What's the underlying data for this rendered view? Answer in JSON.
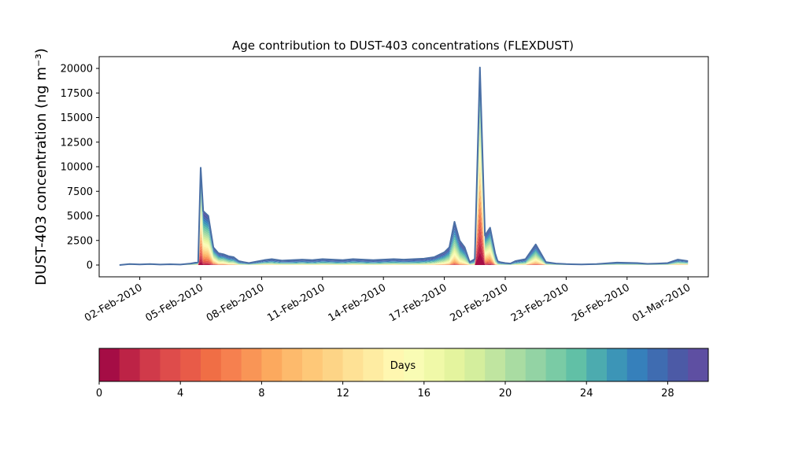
{
  "chart_data": {
    "type": "area",
    "title": "Age contribution to DUST-403 concentrations (FLEXDUST)",
    "ylabel": "DUST-403 concentration (ng m⁻³)",
    "xlabel": "",
    "x_type": "date",
    "x_range": [
      "2010-01-31",
      "2010-03-02"
    ],
    "ylim": [
      -1200,
      21200
    ],
    "y_ticks": [
      0,
      2500,
      5000,
      7500,
      10000,
      12500,
      15000,
      17500,
      20000
    ],
    "x_ticks": [
      "2010-02-02",
      "2010-02-05",
      "2010-02-08",
      "2010-02-11",
      "2010-02-14",
      "2010-02-17",
      "2010-02-20",
      "2010-02-23",
      "2010-02-26",
      "2010-03-01"
    ],
    "x_tick_labels": [
      "02-Feb-2010",
      "05-Feb-2010",
      "08-Feb-2010",
      "11-Feb-2010",
      "14-Feb-2010",
      "17-Feb-2010",
      "20-Feb-2010",
      "23-Feb-2010",
      "26-Feb-2010",
      "01-Mar-2010"
    ],
    "grid": false,
    "series_total": {
      "x": [
        "2010-02-01T00:00",
        "2010-02-01T12:00",
        "2010-02-02T00:00",
        "2010-02-02T12:00",
        "2010-02-03T00:00",
        "2010-02-03T12:00",
        "2010-02-04T00:00",
        "2010-02-04T12:00",
        "2010-02-04T21:00",
        "2010-02-05T00:00",
        "2010-02-05T03:00",
        "2010-02-05T09:00",
        "2010-02-05T15:00",
        "2010-02-05T21:00",
        "2010-02-06T03:00",
        "2010-02-06T09:00",
        "2010-02-06T15:00",
        "2010-02-06T21:00",
        "2010-02-07T03:00",
        "2010-02-07T09:00",
        "2010-02-07T18:00",
        "2010-02-08T03:00",
        "2010-02-08T12:00",
        "2010-02-09T00:00",
        "2010-02-09T12:00",
        "2010-02-10T00:00",
        "2010-02-10T12:00",
        "2010-02-11T00:00",
        "2010-02-11T12:00",
        "2010-02-12T00:00",
        "2010-02-12T12:00",
        "2010-02-13T00:00",
        "2010-02-13T12:00",
        "2010-02-14T00:00",
        "2010-02-14T12:00",
        "2010-02-15T00:00",
        "2010-02-15T12:00",
        "2010-02-16T00:00",
        "2010-02-16T12:00",
        "2010-02-17T00:00",
        "2010-02-17T06:00",
        "2010-02-17T12:00",
        "2010-02-17T18:00",
        "2010-02-18T00:00",
        "2010-02-18T06:00",
        "2010-02-18T12:00",
        "2010-02-18T18:00",
        "2010-02-19T00:00",
        "2010-02-19T06:00",
        "2010-02-19T12:00",
        "2010-02-19T15:00",
        "2010-02-19T18:00",
        "2010-02-20T00:00",
        "2010-02-20T06:00",
        "2010-02-20T12:00",
        "2010-02-21T00:00",
        "2010-02-21T12:00",
        "2010-02-22T00:00",
        "2010-02-22T12:00",
        "2010-02-23T00:00",
        "2010-02-23T06:00",
        "2010-02-23T18:00",
        "2010-02-24T12:00",
        "2010-02-25T12:00",
        "2010-02-26T12:00",
        "2010-02-27T00:00",
        "2010-02-27T12:00",
        "2010-02-28T00:00",
        "2010-02-28T12:00",
        "2010-03-01T00:00"
      ],
      "values": [
        0,
        100,
        60,
        100,
        50,
        80,
        50,
        150,
        300,
        9900,
        5500,
        5000,
        1800,
        1200,
        1100,
        900,
        800,
        400,
        300,
        200,
        350,
        500,
        600,
        450,
        500,
        550,
        500,
        600,
        550,
        500,
        600,
        550,
        500,
        550,
        600,
        550,
        600,
        650,
        800,
        1300,
        1800,
        4400,
        2500,
        1800,
        300,
        600,
        20100,
        3000,
        3800,
        1200,
        400,
        300,
        200,
        150,
        400,
        600,
        2100,
        300,
        150,
        100,
        80,
        60,
        100,
        250,
        200,
        120,
        150,
        200,
        550,
        400
      ]
    },
    "age_fraction_young": [
      0.0,
      0.3,
      0.2,
      0.3,
      0.2,
      0.2,
      0.2,
      0.3,
      0.5,
      0.92,
      0.85,
      0.85,
      0.8,
      0.7,
      0.7,
      0.6,
      0.6,
      0.4,
      0.35,
      0.3,
      0.4,
      0.5,
      0.45,
      0.4,
      0.35,
      0.4,
      0.35,
      0.4,
      0.35,
      0.35,
      0.4,
      0.35,
      0.3,
      0.35,
      0.4,
      0.35,
      0.35,
      0.4,
      0.5,
      0.6,
      0.65,
      0.75,
      0.65,
      0.6,
      0.4,
      0.5,
      0.95,
      0.85,
      0.85,
      0.6,
      0.4,
      0.3,
      0.2,
      0.2,
      0.4,
      0.5,
      0.75,
      0.4,
      0.2,
      0.1,
      0.1,
      0.1,
      0.2,
      0.3,
      0.3,
      0.2,
      0.2,
      0.3,
      0.6,
      0.6
    ],
    "colorbar": {
      "label": "Days",
      "min": 0,
      "max": 30,
      "ticks": [
        0,
        4,
        8,
        12,
        16,
        20,
        24,
        28
      ],
      "colors": [
        "#a50d45",
        "#bd2346",
        "#d03a4a",
        "#de4c4b",
        "#e85b48",
        "#f06e45",
        "#f6804f",
        "#f99556",
        "#fca95e",
        "#fdba6c",
        "#fec878",
        "#fdd486",
        "#fee195",
        "#feeca2",
        "#fff7b0",
        "#f9fcb4",
        "#f0f9a8",
        "#e4f49e",
        "#d4ee9d",
        "#c0e5a0",
        "#a9dca2",
        "#93d3a4",
        "#7acba5",
        "#61c0a6",
        "#4cabaf",
        "#3c95b7",
        "#3680bb",
        "#3f6cb1",
        "#4c5aa6",
        "#5e4fa2"
      ]
    },
    "line_color": "#4a6fa5"
  }
}
